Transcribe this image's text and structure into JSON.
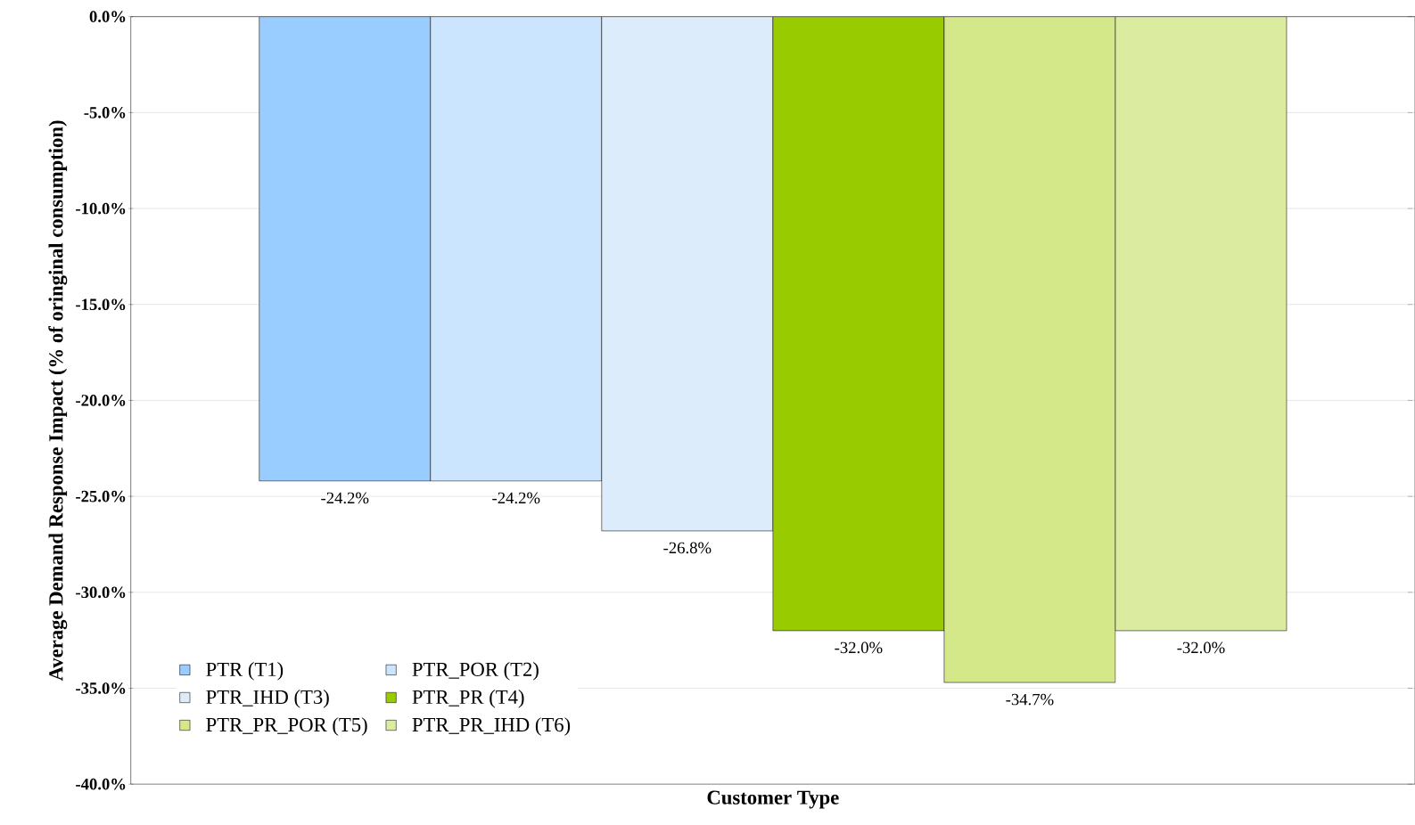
{
  "chart_data": {
    "type": "bar",
    "xlabel": "Customer Type",
    "ylabel": "Average Demand Response Impact (% of oringinal consumption)",
    "categories": [
      null
    ],
    "series": [
      {
        "name": "PTR (T1)",
        "color": "#99ccff",
        "values": [
          -24.2
        ],
        "value_labels": [
          "-24.2%"
        ]
      },
      {
        "name": "PTR_POR (T2)",
        "color": "#cce5ff",
        "values": [
          -24.2
        ],
        "value_labels": [
          "-24.2%"
        ]
      },
      {
        "name": "PTR_IHD (T3)",
        "color": "#dcecfb",
        "values": [
          -26.8
        ],
        "value_labels": [
          "-26.8%"
        ]
      },
      {
        "name": "PTR_PR (T4)",
        "color": "#99cc00",
        "values": [
          -32.0
        ],
        "value_labels": [
          "-32.0%"
        ]
      },
      {
        "name": "PTR_PR_POR (T5)",
        "color": "#d4e88a",
        "values": [
          -34.7
        ],
        "value_labels": [
          "-34.7%"
        ]
      },
      {
        "name": "PTR_PR_IHD (T6)",
        "color": "#dbeba0",
        "values": [
          -32.0
        ],
        "value_labels": [
          "-32.0%"
        ]
      }
    ],
    "ylim": [
      -40,
      0
    ],
    "yticks": [
      {
        "value": 0,
        "label": "0.0%"
      },
      {
        "value": -5,
        "label": "-5.0%"
      },
      {
        "value": -10,
        "label": "-10.0%"
      },
      {
        "value": -15,
        "label": "-15.0%"
      },
      {
        "value": -20,
        "label": "-20.0%"
      },
      {
        "value": -25,
        "label": "-25.0%"
      },
      {
        "value": -30,
        "label": "-30.0%"
      },
      {
        "value": -35,
        "label": "-35.0%"
      },
      {
        "value": -40,
        "label": "-40.0%"
      }
    ],
    "grid": "y",
    "legend": "bottom left"
  }
}
